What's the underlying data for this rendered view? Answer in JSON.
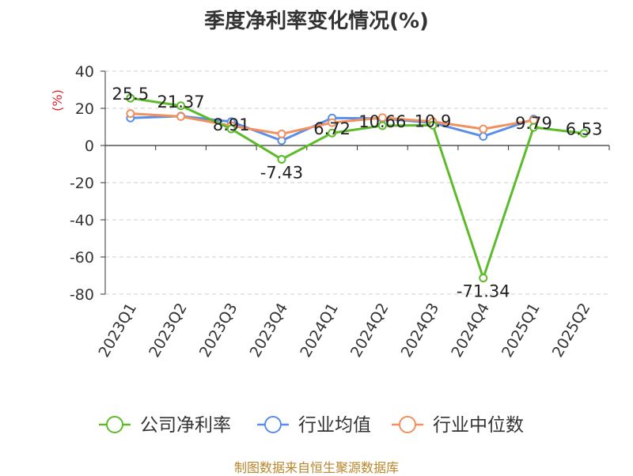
{
  "chart_data": {
    "type": "line",
    "title": "季度净利率变化情况(%)",
    "ylabel": "(%)",
    "xlabel": "",
    "categories": [
      "2023Q1",
      "2023Q2",
      "2023Q3",
      "2023Q4",
      "2024Q1",
      "2024Q2",
      "2024Q3",
      "2024Q4",
      "2025Q1",
      "2025Q2"
    ],
    "ylim": [
      -80,
      40
    ],
    "yticks": [
      40,
      20,
      0,
      -20,
      -40,
      -60,
      -80
    ],
    "grid": true,
    "legend_position": "bottom",
    "series": [
      {
        "name": "公司净利率",
        "color": "#5dbb2a",
        "values": [
          25.5,
          21.37,
          8.91,
          -7.43,
          6.72,
          10.66,
          10.9,
          -71.34,
          9.79,
          6.53
        ],
        "labels": [
          "25.5",
          "21.37",
          "8.91",
          "-7.43",
          "6.72",
          "10.66",
          "10.9",
          "-71.34",
          "9.79",
          "6.53"
        ]
      },
      {
        "name": "行业均值",
        "color": "#5b8ee6",
        "values": [
          14.8,
          15.8,
          12.8,
          2.6,
          14.8,
          14.5,
          12.2,
          4.9,
          14.2,
          null
        ]
      },
      {
        "name": "行业中位数",
        "color": "#f0915e",
        "values": [
          17.2,
          15.6,
          10.6,
          6.2,
          12.3,
          15.0,
          12.8,
          8.9,
          13.6,
          null
        ]
      }
    ]
  },
  "footer": {
    "source": "制图数据来自恒生聚源数据库"
  }
}
